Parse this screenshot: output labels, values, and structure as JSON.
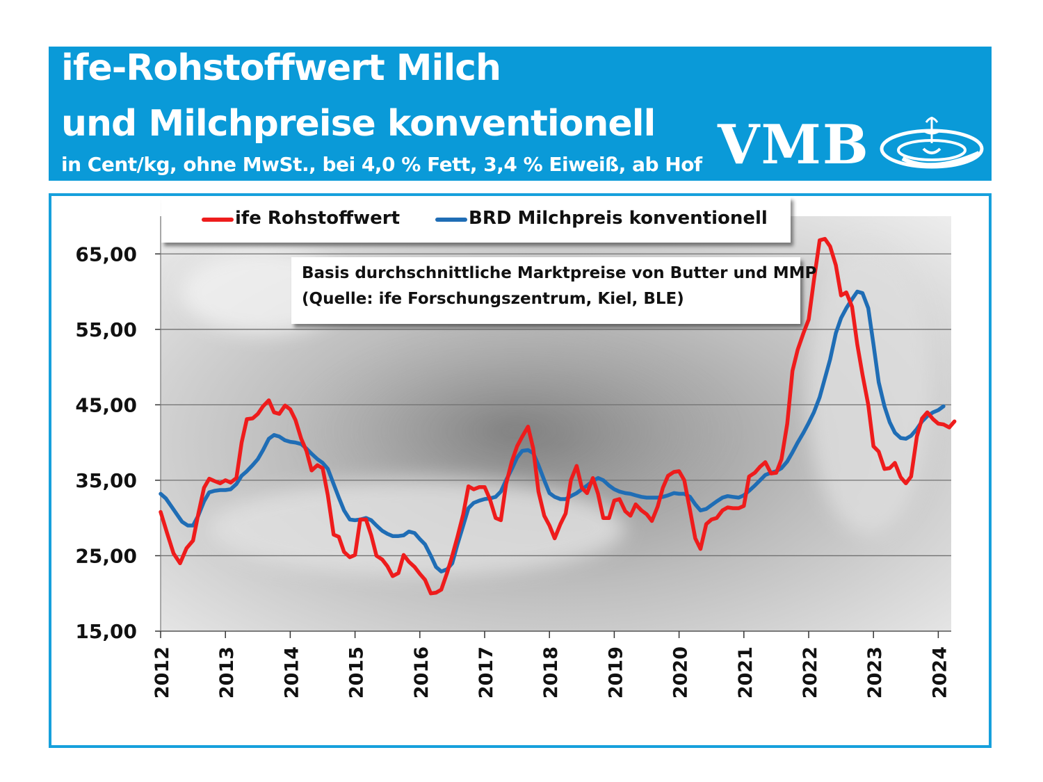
{
  "header": {
    "title_line1": "ife-Rohstoffwert Milch",
    "title_line2": "und Milchpreise konventionell",
    "subtitle": "in Cent/kg, ohne MwSt., bei 4,0 % Fett, 3,4 % Eiweiß, ab Hof",
    "logo_text": "VMB",
    "background_color": "#0a9ad8"
  },
  "note": {
    "line1": "Basis durchschnittliche Marktpreise von Butter und MMP",
    "line2": "(Quelle: ife Forschungszentrum, Kiel, BLE)"
  },
  "chart_data": {
    "type": "line",
    "title": "",
    "xlabel": "",
    "ylabel": "",
    "ylim": [
      15,
      70
    ],
    "xlim": [
      2012,
      2024.25
    ],
    "y_ticks": [
      "15,00",
      "25,00",
      "35,00",
      "45,00",
      "55,00",
      "65,00"
    ],
    "y_tick_values": [
      15,
      25,
      35,
      45,
      55,
      65
    ],
    "x_ticks": [
      "2012",
      "2013",
      "2014",
      "2015",
      "2016",
      "2017",
      "2018",
      "2019",
      "2020",
      "2021",
      "2022",
      "2023",
      "2024"
    ],
    "grid": true,
    "legend_position": "top",
    "series": [
      {
        "name": "ife Rohstoffwert",
        "color": "#ee1c1c",
        "points": [
          [
            2012.0,
            30.8
          ],
          [
            2012.1,
            28.0
          ],
          [
            2012.2,
            25.3
          ],
          [
            2012.3,
            24.0
          ],
          [
            2012.4,
            26.0
          ],
          [
            2012.5,
            27.0
          ],
          [
            2012.58,
            30.5
          ],
          [
            2012.67,
            34.0
          ],
          [
            2012.75,
            35.2
          ],
          [
            2012.83,
            34.9
          ],
          [
            2012.92,
            34.6
          ],
          [
            2013.0,
            35.0
          ],
          [
            2013.08,
            34.7
          ],
          [
            2013.17,
            35.3
          ],
          [
            2013.25,
            40.0
          ],
          [
            2013.33,
            43.1
          ],
          [
            2013.42,
            43.2
          ],
          [
            2013.5,
            43.8
          ],
          [
            2013.58,
            44.8
          ],
          [
            2013.67,
            45.6
          ],
          [
            2013.75,
            44.0
          ],
          [
            2013.83,
            43.8
          ],
          [
            2013.92,
            44.9
          ],
          [
            2014.0,
            44.4
          ],
          [
            2014.08,
            43.0
          ],
          [
            2014.17,
            40.5
          ],
          [
            2014.25,
            38.9
          ],
          [
            2014.33,
            36.3
          ],
          [
            2014.42,
            37.0
          ],
          [
            2014.5,
            36.6
          ],
          [
            2014.58,
            33.0
          ],
          [
            2014.67,
            27.8
          ],
          [
            2014.75,
            27.5
          ],
          [
            2014.83,
            25.5
          ],
          [
            2014.92,
            24.8
          ],
          [
            2015.0,
            25.1
          ],
          [
            2015.08,
            29.8
          ],
          [
            2015.17,
            29.8
          ],
          [
            2015.25,
            27.7
          ],
          [
            2015.33,
            25.0
          ],
          [
            2015.42,
            24.5
          ],
          [
            2015.5,
            23.6
          ],
          [
            2015.58,
            22.3
          ],
          [
            2015.67,
            22.7
          ],
          [
            2015.75,
            25.1
          ],
          [
            2015.83,
            24.2
          ],
          [
            2015.92,
            23.5
          ],
          [
            2016.0,
            22.6
          ],
          [
            2016.08,
            21.8
          ],
          [
            2016.17,
            20.0
          ],
          [
            2016.25,
            20.1
          ],
          [
            2016.33,
            20.5
          ],
          [
            2016.42,
            22.7
          ],
          [
            2016.5,
            25.0
          ],
          [
            2016.58,
            27.5
          ],
          [
            2016.67,
            30.5
          ],
          [
            2016.75,
            34.2
          ],
          [
            2016.83,
            33.8
          ],
          [
            2016.92,
            34.1
          ],
          [
            2017.0,
            34.1
          ],
          [
            2017.08,
            32.5
          ],
          [
            2017.17,
            30.0
          ],
          [
            2017.25,
            29.7
          ],
          [
            2017.33,
            34.5
          ],
          [
            2017.42,
            37.5
          ],
          [
            2017.5,
            39.5
          ],
          [
            2017.58,
            40.8
          ],
          [
            2017.67,
            42.1
          ],
          [
            2017.75,
            39.2
          ],
          [
            2017.83,
            33.5
          ],
          [
            2017.92,
            30.3
          ],
          [
            2018.0,
            29.0
          ],
          [
            2018.08,
            27.3
          ],
          [
            2018.17,
            29.2
          ],
          [
            2018.25,
            30.6
          ],
          [
            2018.33,
            35.0
          ],
          [
            2018.42,
            36.9
          ],
          [
            2018.5,
            34.0
          ],
          [
            2018.58,
            33.3
          ],
          [
            2018.67,
            35.3
          ],
          [
            2018.75,
            33.2
          ],
          [
            2018.83,
            30.0
          ],
          [
            2018.92,
            30.0
          ],
          [
            2019.0,
            32.3
          ],
          [
            2019.08,
            32.5
          ],
          [
            2019.17,
            30.9
          ],
          [
            2019.25,
            30.3
          ],
          [
            2019.33,
            31.8
          ],
          [
            2019.42,
            31.0
          ],
          [
            2019.5,
            30.5
          ],
          [
            2019.58,
            29.6
          ],
          [
            2019.67,
            31.5
          ],
          [
            2019.75,
            34.0
          ],
          [
            2019.83,
            35.6
          ],
          [
            2019.92,
            36.1
          ],
          [
            2020.0,
            36.2
          ],
          [
            2020.08,
            35.0
          ],
          [
            2020.17,
            31.0
          ],
          [
            2020.25,
            27.3
          ],
          [
            2020.33,
            25.9
          ],
          [
            2020.42,
            29.2
          ],
          [
            2020.5,
            29.8
          ],
          [
            2020.58,
            30.0
          ],
          [
            2020.67,
            31.0
          ],
          [
            2020.75,
            31.4
          ],
          [
            2020.83,
            31.3
          ],
          [
            2020.92,
            31.3
          ],
          [
            2021.0,
            31.6
          ],
          [
            2021.08,
            35.5
          ],
          [
            2021.17,
            36.0
          ],
          [
            2021.25,
            36.8
          ],
          [
            2021.33,
            37.4
          ],
          [
            2021.42,
            35.9
          ],
          [
            2021.5,
            36.0
          ],
          [
            2021.58,
            37.8
          ],
          [
            2021.67,
            42.5
          ],
          [
            2021.75,
            49.5
          ],
          [
            2021.83,
            52.3
          ],
          [
            2021.92,
            54.5
          ],
          [
            2022.0,
            56.3
          ],
          [
            2022.08,
            61.5
          ],
          [
            2022.17,
            66.8
          ],
          [
            2022.25,
            67.0
          ],
          [
            2022.33,
            66.0
          ],
          [
            2022.42,
            63.5
          ],
          [
            2022.5,
            59.5
          ],
          [
            2022.58,
            59.9
          ],
          [
            2022.67,
            58.0
          ],
          [
            2022.75,
            53.0
          ],
          [
            2022.83,
            49.0
          ],
          [
            2022.92,
            45.0
          ],
          [
            2023.0,
            39.5
          ],
          [
            2023.08,
            38.8
          ],
          [
            2023.17,
            36.5
          ],
          [
            2023.25,
            36.6
          ],
          [
            2023.33,
            37.3
          ],
          [
            2023.42,
            35.4
          ],
          [
            2023.5,
            34.6
          ],
          [
            2023.58,
            35.5
          ],
          [
            2023.67,
            40.8
          ],
          [
            2023.75,
            43.2
          ],
          [
            2023.83,
            44.0
          ],
          [
            2023.92,
            43.1
          ],
          [
            2024.0,
            42.5
          ],
          [
            2024.08,
            42.4
          ],
          [
            2024.17,
            42.0
          ],
          [
            2024.25,
            42.8
          ]
        ]
      },
      {
        "name": "BRD Milchpreis konventionell",
        "color": "#1f6db5",
        "points": [
          [
            2012.0,
            33.2
          ],
          [
            2012.08,
            32.6
          ],
          [
            2012.17,
            31.5
          ],
          [
            2012.25,
            30.5
          ],
          [
            2012.33,
            29.5
          ],
          [
            2012.42,
            29.0
          ],
          [
            2012.5,
            29.0
          ],
          [
            2012.58,
            30.3
          ],
          [
            2012.67,
            32.2
          ],
          [
            2012.75,
            33.4
          ],
          [
            2012.83,
            33.6
          ],
          [
            2012.92,
            33.7
          ],
          [
            2013.0,
            33.7
          ],
          [
            2013.08,
            33.8
          ],
          [
            2013.17,
            34.5
          ],
          [
            2013.25,
            35.6
          ],
          [
            2013.33,
            36.2
          ],
          [
            2013.42,
            37.0
          ],
          [
            2013.5,
            37.8
          ],
          [
            2013.58,
            39.0
          ],
          [
            2013.67,
            40.5
          ],
          [
            2013.75,
            41.0
          ],
          [
            2013.83,
            40.8
          ],
          [
            2013.92,
            40.3
          ],
          [
            2014.0,
            40.1
          ],
          [
            2014.08,
            40.0
          ],
          [
            2014.17,
            39.8
          ],
          [
            2014.25,
            39.2
          ],
          [
            2014.33,
            38.5
          ],
          [
            2014.42,
            37.8
          ],
          [
            2014.5,
            37.3
          ],
          [
            2014.58,
            36.5
          ],
          [
            2014.67,
            34.5
          ],
          [
            2014.75,
            32.7
          ],
          [
            2014.83,
            31.0
          ],
          [
            2014.92,
            29.8
          ],
          [
            2015.0,
            29.7
          ],
          [
            2015.08,
            29.8
          ],
          [
            2015.17,
            30.0
          ],
          [
            2015.25,
            29.7
          ],
          [
            2015.33,
            29.0
          ],
          [
            2015.42,
            28.3
          ],
          [
            2015.5,
            27.9
          ],
          [
            2015.58,
            27.6
          ],
          [
            2015.67,
            27.6
          ],
          [
            2015.75,
            27.7
          ],
          [
            2015.83,
            28.2
          ],
          [
            2015.92,
            28.0
          ],
          [
            2016.0,
            27.2
          ],
          [
            2016.08,
            26.5
          ],
          [
            2016.17,
            25.0
          ],
          [
            2016.25,
            23.5
          ],
          [
            2016.33,
            22.9
          ],
          [
            2016.42,
            23.2
          ],
          [
            2016.5,
            24.0
          ],
          [
            2016.58,
            26.5
          ],
          [
            2016.67,
            29.0
          ],
          [
            2016.75,
            31.3
          ],
          [
            2016.83,
            32.0
          ],
          [
            2016.92,
            32.3
          ],
          [
            2017.0,
            32.5
          ],
          [
            2017.08,
            32.6
          ],
          [
            2017.17,
            32.8
          ],
          [
            2017.25,
            33.5
          ],
          [
            2017.33,
            35.0
          ],
          [
            2017.42,
            36.5
          ],
          [
            2017.5,
            38.0
          ],
          [
            2017.58,
            38.9
          ],
          [
            2017.67,
            39.0
          ],
          [
            2017.75,
            38.6
          ],
          [
            2017.83,
            37.0
          ],
          [
            2017.92,
            35.0
          ],
          [
            2018.0,
            33.3
          ],
          [
            2018.08,
            32.8
          ],
          [
            2018.17,
            32.5
          ],
          [
            2018.25,
            32.5
          ],
          [
            2018.33,
            32.9
          ],
          [
            2018.42,
            33.3
          ],
          [
            2018.5,
            33.8
          ],
          [
            2018.58,
            34.3
          ],
          [
            2018.67,
            34.9
          ],
          [
            2018.75,
            35.3
          ],
          [
            2018.83,
            35.0
          ],
          [
            2018.92,
            34.3
          ],
          [
            2019.0,
            33.8
          ],
          [
            2019.08,
            33.5
          ],
          [
            2019.17,
            33.3
          ],
          [
            2019.25,
            33.2
          ],
          [
            2019.33,
            33.0
          ],
          [
            2019.42,
            32.8
          ],
          [
            2019.5,
            32.7
          ],
          [
            2019.58,
            32.7
          ],
          [
            2019.67,
            32.7
          ],
          [
            2019.75,
            32.8
          ],
          [
            2019.83,
            33.0
          ],
          [
            2019.92,
            33.3
          ],
          [
            2020.0,
            33.2
          ],
          [
            2020.08,
            33.2
          ],
          [
            2020.17,
            32.8
          ],
          [
            2020.25,
            31.8
          ],
          [
            2020.33,
            31.0
          ],
          [
            2020.42,
            31.2
          ],
          [
            2020.5,
            31.7
          ],
          [
            2020.58,
            32.2
          ],
          [
            2020.67,
            32.7
          ],
          [
            2020.75,
            32.9
          ],
          [
            2020.83,
            32.8
          ],
          [
            2020.92,
            32.7
          ],
          [
            2021.0,
            33.0
          ],
          [
            2021.08,
            33.6
          ],
          [
            2021.17,
            34.3
          ],
          [
            2021.25,
            35.0
          ],
          [
            2021.33,
            35.7
          ],
          [
            2021.42,
            36.0
          ],
          [
            2021.5,
            36.2
          ],
          [
            2021.58,
            36.6
          ],
          [
            2021.67,
            37.5
          ],
          [
            2021.75,
            38.7
          ],
          [
            2021.83,
            40.0
          ],
          [
            2021.92,
            41.3
          ],
          [
            2022.0,
            42.6
          ],
          [
            2022.08,
            44.0
          ],
          [
            2022.17,
            46.0
          ],
          [
            2022.25,
            48.5
          ],
          [
            2022.33,
            51.0
          ],
          [
            2022.42,
            54.5
          ],
          [
            2022.5,
            56.5
          ],
          [
            2022.58,
            57.8
          ],
          [
            2022.67,
            59.0
          ],
          [
            2022.75,
            60.0
          ],
          [
            2022.83,
            59.8
          ],
          [
            2022.92,
            57.8
          ],
          [
            2023.0,
            53.0
          ],
          [
            2023.08,
            48.0
          ],
          [
            2023.17,
            44.8
          ],
          [
            2023.25,
            42.7
          ],
          [
            2023.33,
            41.3
          ],
          [
            2023.42,
            40.6
          ],
          [
            2023.5,
            40.5
          ],
          [
            2023.58,
            40.9
          ],
          [
            2023.67,
            41.8
          ],
          [
            2023.75,
            42.8
          ],
          [
            2023.83,
            43.5
          ],
          [
            2023.92,
            44.0
          ],
          [
            2024.0,
            44.3
          ],
          [
            2024.08,
            44.8
          ]
        ]
      }
    ]
  }
}
